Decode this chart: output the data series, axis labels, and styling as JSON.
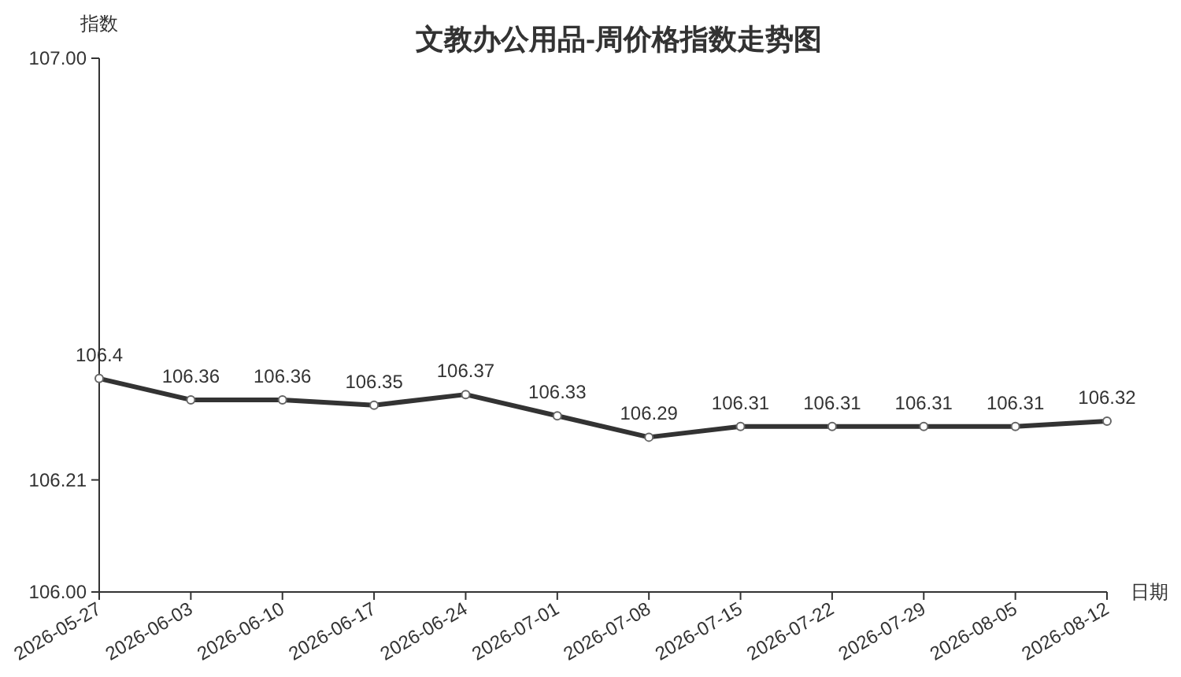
{
  "chart_data": {
    "type": "line",
    "title": "文教办公用品-周价格指数走势图",
    "xlabel": "日期",
    "ylabel": "指数",
    "categories": [
      "2026-05-27",
      "2026-06-03",
      "2026-06-10",
      "2026-06-17",
      "2026-06-24",
      "2026-07-01",
      "2026-07-08",
      "2026-07-15",
      "2026-07-22",
      "2026-07-29",
      "2026-08-05",
      "2026-08-12"
    ],
    "series": [
      {
        "color": "#333333",
        "values": [
          106.4,
          106.36,
          106.36,
          106.35,
          106.37,
          106.33,
          106.29,
          106.31,
          106.31,
          106.31,
          106.31,
          106.32
        ]
      }
    ],
    "ylim": [
      106,
      107
    ],
    "yticks": [
      {
        "value": 106,
        "label": "106.00"
      },
      106.21,
      {
        "value": 107,
        "label": "107.00"
      }
    ],
    "data_labels": true,
    "marker": "circle",
    "line_style": "solid"
  }
}
